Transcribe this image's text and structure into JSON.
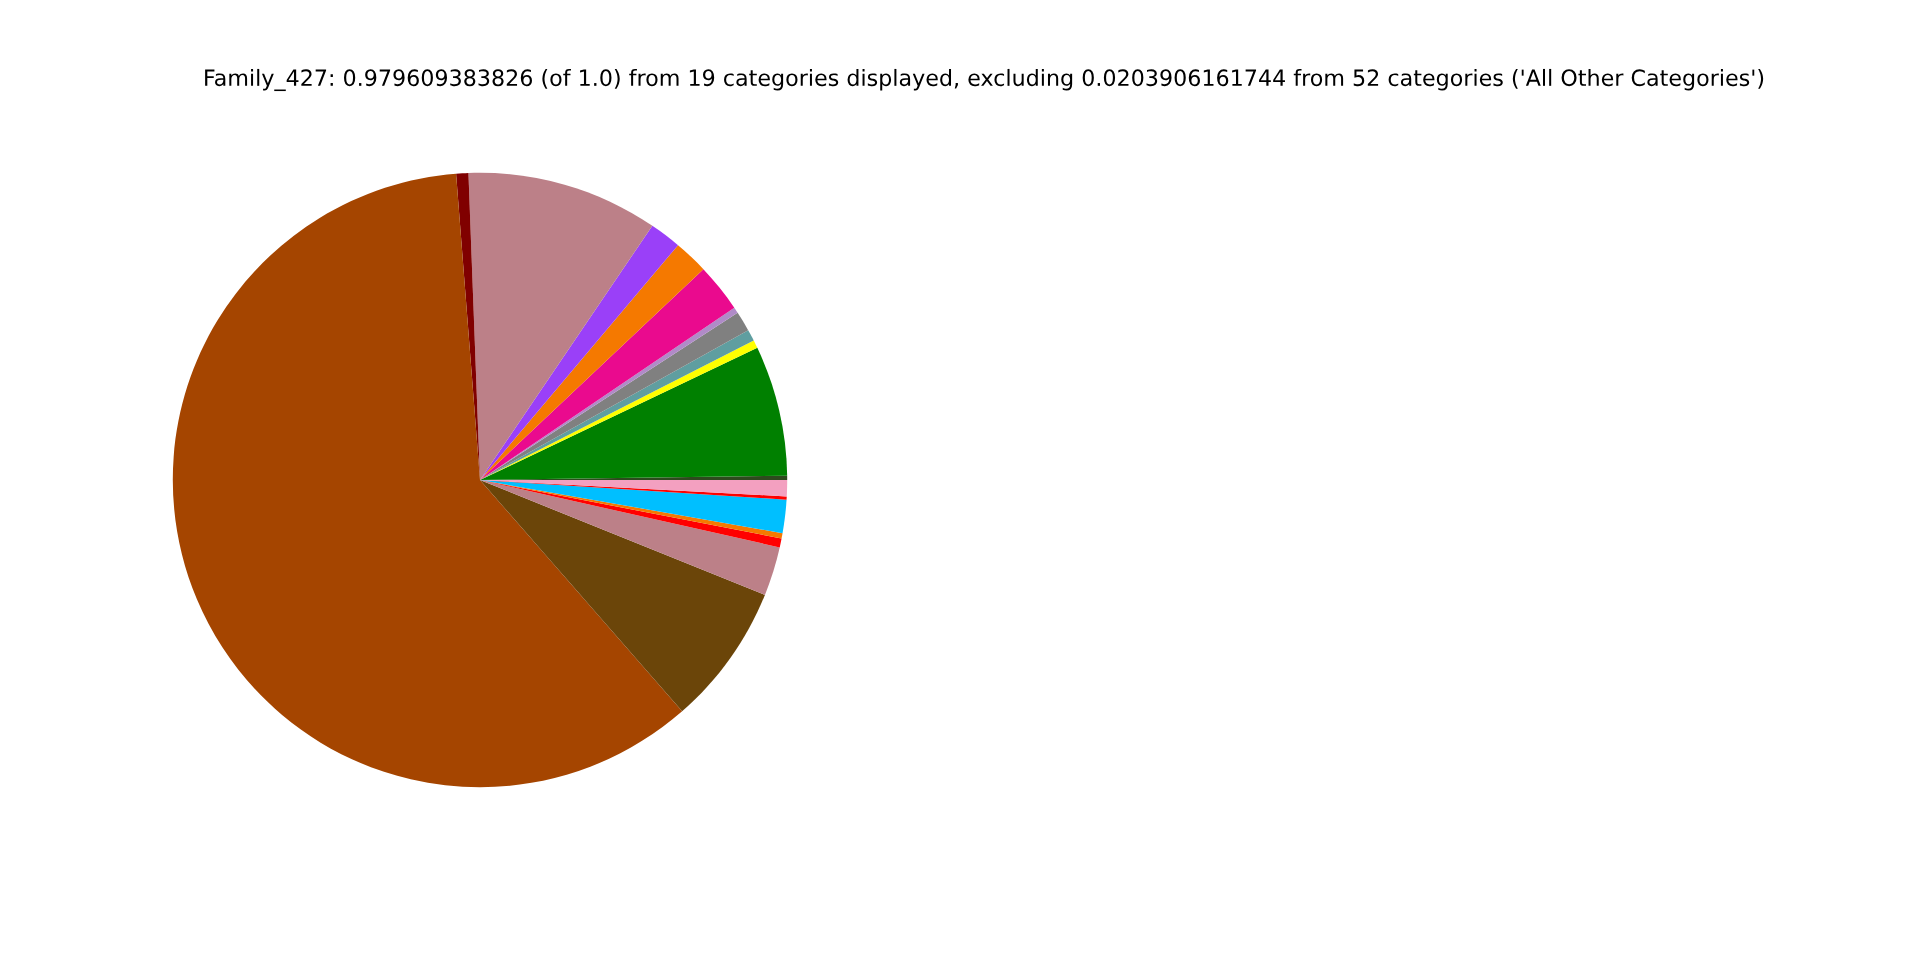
{
  "chart_data": {
    "type": "pie",
    "title": "Family_427: 0.979609383826 (of 1.0) from 19 categories displayed, excluding 0.0203906161744 from 52 categories ('All Other Categories')",
    "categories": [
      null,
      null,
      null,
      null,
      null,
      null,
      null,
      null,
      null,
      null,
      null,
      null,
      null,
      null,
      null,
      null,
      null,
      null,
      null
    ],
    "values": [
      0.22,
      6.86,
      0.42,
      0.61,
      1.06,
      0.31,
      2.56,
      1.81,
      1.67,
      10.08,
      0.64,
      60.19,
      7.47,
      2.58,
      0.47,
      0.28,
      1.75,
      0.17,
      0.85
    ],
    "colors": [
      "#2e4a1e",
      "#008000",
      "#ffff00",
      "#5f9ea0",
      "#808080",
      "#b08bc8",
      "#ea0a8e",
      "#f57900",
      "#9a40f8",
      "#bc8088",
      "#800000",
      "#a54500",
      "#6b4509",
      "#bc8088",
      "#ff0000",
      "#f57900",
      "#00bfff",
      "#ff0000",
      "#f3a0c0"
    ]
  }
}
